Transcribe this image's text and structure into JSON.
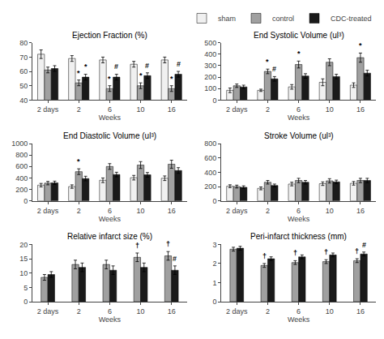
{
  "chart_data": [
    {
      "type": "bar",
      "title": "Ejection Fraction (%)",
      "xlabel": "Weeks",
      "categories": [
        "2 days",
        "2",
        "6",
        "10",
        "16"
      ],
      "ylim": [
        40,
        80
      ],
      "yticks": [
        40,
        50,
        60,
        70,
        80
      ],
      "grid": false,
      "series": [
        {
          "name": "sham",
          "color": "#f0f0f0",
          "values": [
            72,
            69,
            68,
            65,
            68
          ],
          "errors": [
            3,
            2,
            2,
            2,
            2
          ]
        },
        {
          "name": "control",
          "color": "#a0a0a0",
          "values": [
            61,
            52,
            48,
            50,
            48
          ],
          "errors": [
            2,
            2,
            2,
            2,
            2
          ],
          "annotations": [
            null,
            "*",
            "*",
            "*",
            "*"
          ]
        },
        {
          "name": "CDC-treated",
          "color": "#1a1a1a",
          "values": [
            62,
            56,
            56,
            57,
            58
          ],
          "errors": [
            2,
            2,
            2,
            2,
            2
          ],
          "annotations": [
            null,
            "*",
            "#",
            "#",
            "#"
          ]
        }
      ]
    },
    {
      "type": "bar",
      "title": "End Systolic Volume (ul³)",
      "xlabel": "Weeks",
      "categories": [
        "2 days",
        "2",
        "6",
        "10",
        "16"
      ],
      "ylim": [
        0,
        500
      ],
      "yticks": [
        0,
        100,
        200,
        300,
        400,
        500
      ],
      "grid": false,
      "legend": "upper right",
      "series": [
        {
          "name": "sham",
          "color": "#f0f0f0",
          "values": [
            85,
            85,
            115,
            155,
            130
          ],
          "errors": [
            20,
            10,
            20,
            30,
            20
          ]
        },
        {
          "name": "control",
          "color": "#a0a0a0",
          "values": [
            125,
            250,
            310,
            330,
            370
          ],
          "errors": [
            15,
            20,
            30,
            30,
            40
          ],
          "annotations": [
            null,
            "*",
            "*",
            null,
            "*"
          ]
        },
        {
          "name": "CDC-treated",
          "color": "#1a1a1a",
          "values": [
            115,
            185,
            210,
            205,
            235
          ],
          "errors": [
            15,
            20,
            20,
            20,
            25
          ],
          "annotations": [
            null,
            "#",
            null,
            null,
            null
          ]
        }
      ]
    },
    {
      "type": "bar",
      "title": "End Diastolic Volume (ul³)",
      "xlabel": "Weeks",
      "categories": [
        "2 days",
        "2",
        "6",
        "10",
        "16"
      ],
      "ylim": [
        0,
        1000
      ],
      "yticks": [
        0,
        200,
        400,
        600,
        800,
        1000
      ],
      "grid": false,
      "series": [
        {
          "name": "sham",
          "color": "#f0f0f0",
          "values": [
            275,
            250,
            360,
            405,
            395
          ],
          "errors": [
            30,
            30,
            40,
            40,
            40
          ]
        },
        {
          "name": "control",
          "color": "#a0a0a0",
          "values": [
            310,
            510,
            600,
            625,
            640
          ],
          "errors": [
            30,
            50,
            50,
            60,
            70
          ],
          "annotations": [
            null,
            "*",
            null,
            null,
            null
          ]
        },
        {
          "name": "CDC-treated",
          "color": "#1a1a1a",
          "values": [
            315,
            390,
            460,
            455,
            530
          ],
          "errors": [
            30,
            40,
            40,
            40,
            50
          ]
        }
      ]
    },
    {
      "type": "bar",
      "title": "Stroke Volume (ul³)",
      "xlabel": "Weeks",
      "categories": [
        "2 days",
        "2",
        "6",
        "10",
        "16"
      ],
      "ylim": [
        0,
        800
      ],
      "yticks": [
        0,
        200,
        400,
        600,
        800
      ],
      "grid": false,
      "series": [
        {
          "name": "sham",
          "color": "#f0f0f0",
          "values": [
            205,
            175,
            235,
            240,
            245
          ],
          "errors": [
            20,
            20,
            25,
            25,
            25
          ]
        },
        {
          "name": "control",
          "color": "#a0a0a0",
          "values": [
            200,
            260,
            285,
            280,
            285
          ],
          "errors": [
            20,
            25,
            30,
            30,
            30
          ]
        },
        {
          "name": "CDC-treated",
          "color": "#1a1a1a",
          "values": [
            190,
            215,
            260,
            265,
            285
          ],
          "errors": [
            20,
            20,
            25,
            25,
            30
          ]
        }
      ]
    },
    {
      "type": "bar",
      "title": "Relative infarct size (%)",
      "xlabel": "Weeks",
      "categories": [
        "2 days",
        "2",
        "6",
        "10",
        "16"
      ],
      "ylim": [
        0,
        20
      ],
      "yticks": [
        0,
        5,
        10,
        15,
        20
      ],
      "grid": false,
      "series": [
        {
          "name": "control",
          "color": "#a0a0a0",
          "values": [
            8.5,
            13,
            13,
            15.5,
            16
          ],
          "errors": [
            1,
            1.5,
            1.5,
            1.5,
            1.5
          ],
          "annotations": [
            null,
            null,
            null,
            "†",
            "†"
          ]
        },
        {
          "name": "CDC-treated",
          "color": "#1a1a1a",
          "values": [
            9.5,
            12,
            11,
            12,
            11
          ],
          "errors": [
            1,
            1.5,
            1.5,
            1.5,
            1.5
          ],
          "annotations": [
            null,
            null,
            null,
            null,
            "#"
          ]
        }
      ]
    },
    {
      "type": "bar",
      "title": "Peri-infarct thickness (mm)",
      "xlabel": "Weeks",
      "categories": [
        "2 days",
        "2",
        "6",
        "10",
        "16"
      ],
      "ylim": [
        0,
        3
      ],
      "yticks": [
        0,
        1,
        2,
        3
      ],
      "grid": false,
      "series": [
        {
          "name": "control",
          "color": "#a0a0a0",
          "values": [
            2.75,
            1.9,
            2.05,
            2.1,
            2.15
          ],
          "errors": [
            0.1,
            0.1,
            0.1,
            0.1,
            0.1
          ],
          "annotations": [
            null,
            "†",
            "†",
            "†",
            "†"
          ]
        },
        {
          "name": "CDC-treated",
          "color": "#1a1a1a",
          "values": [
            2.8,
            2.25,
            2.35,
            2.45,
            2.5
          ],
          "errors": [
            0.1,
            0.1,
            0.1,
            0.1,
            0.1
          ],
          "annotations": [
            null,
            null,
            null,
            null,
            "#"
          ]
        }
      ]
    }
  ]
}
